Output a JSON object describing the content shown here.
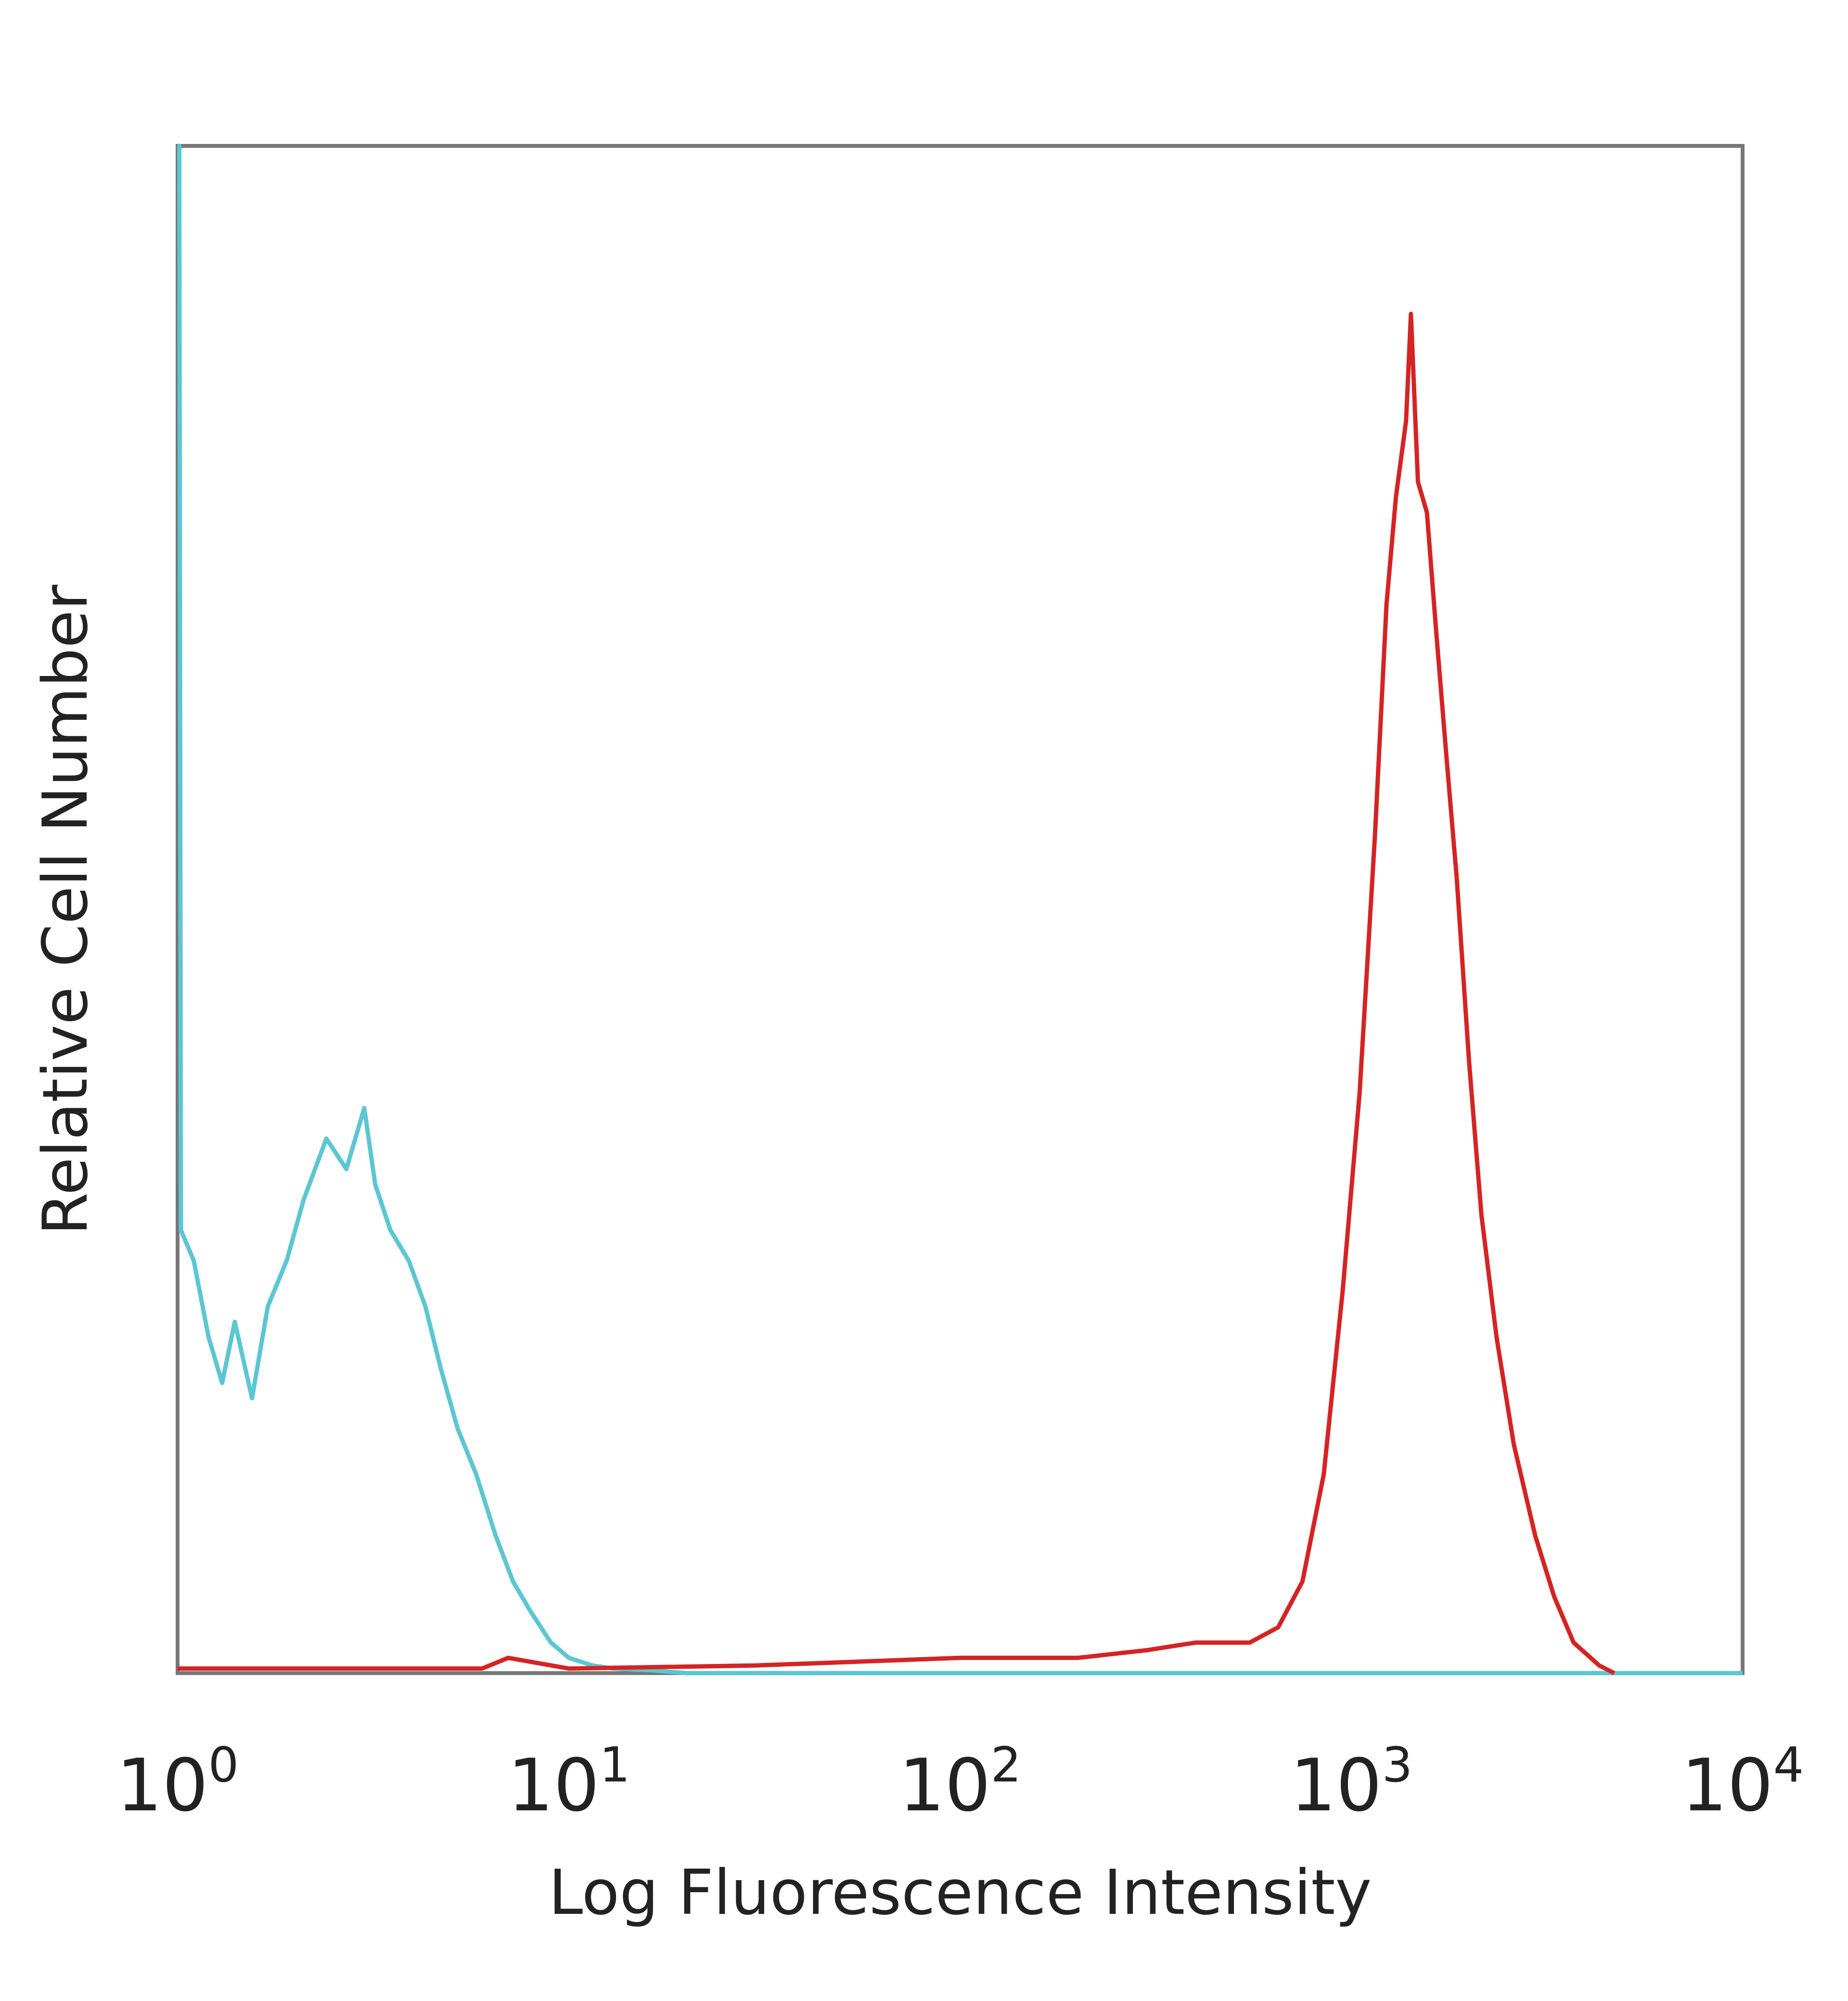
{
  "chart_data": {
    "type": "line",
    "title": "",
    "xlabel": "Log Fluorescence Intensity",
    "ylabel": "Relative Cell Number",
    "x_scale": "log",
    "xlim": [
      1,
      10000
    ],
    "ylim": [
      0,
      100
    ],
    "grid": false,
    "legend": "none",
    "x_ticks": [
      {
        "base": "10",
        "exp": "0",
        "value": 1
      },
      {
        "base": "10",
        "exp": "1",
        "value": 10
      },
      {
        "base": "10",
        "exp": "2",
        "value": 100
      },
      {
        "base": "10",
        "exp": "3",
        "value": 1000
      },
      {
        "base": "10",
        "exp": "4",
        "value": 10000
      }
    ],
    "series": [
      {
        "color": "#5cc6d3",
        "x": [
          1,
          1.01,
          1.02,
          1.1,
          1.2,
          1.3,
          1.4,
          1.55,
          1.7,
          1.9,
          2.1,
          2.4,
          2.7,
          3.0,
          3.2,
          3.5,
          3.9,
          4.3,
          4.7,
          5.2,
          5.8,
          6.5,
          7.2,
          8.0,
          9.0,
          10,
          11.5,
          13,
          16,
          20,
          50,
          10000
        ],
        "y": [
          100,
          100,
          29,
          27,
          22,
          19,
          23,
          18,
          24,
          27,
          31,
          35,
          33,
          37,
          32,
          29,
          27,
          24,
          20,
          16,
          13,
          9,
          6,
          4,
          2,
          1,
          0.5,
          0.3,
          0.2,
          0,
          0,
          0
        ]
      },
      {
        "color": "#d42424",
        "x": [
          1,
          6,
          7,
          10,
          30,
          100,
          200,
          300,
          400,
          550,
          650,
          750,
          850,
          950,
          1050,
          1150,
          1230,
          1300,
          1380,
          1420,
          1480,
          1560,
          1650,
          1750,
          1860,
          2000,
          2150,
          2350,
          2600,
          2950,
          3300,
          3700,
          4300,
          4700
        ],
        "y": [
          0.3,
          0.3,
          1,
          0.3,
          0.5,
          1,
          1,
          1.5,
          2,
          2,
          3,
          6,
          13,
          25,
          38,
          55,
          70,
          77,
          82,
          89,
          78,
          76,
          68,
          60,
          52,
          40,
          30,
          22,
          15,
          9,
          5,
          2,
          0.5,
          0
        ]
      }
    ]
  }
}
